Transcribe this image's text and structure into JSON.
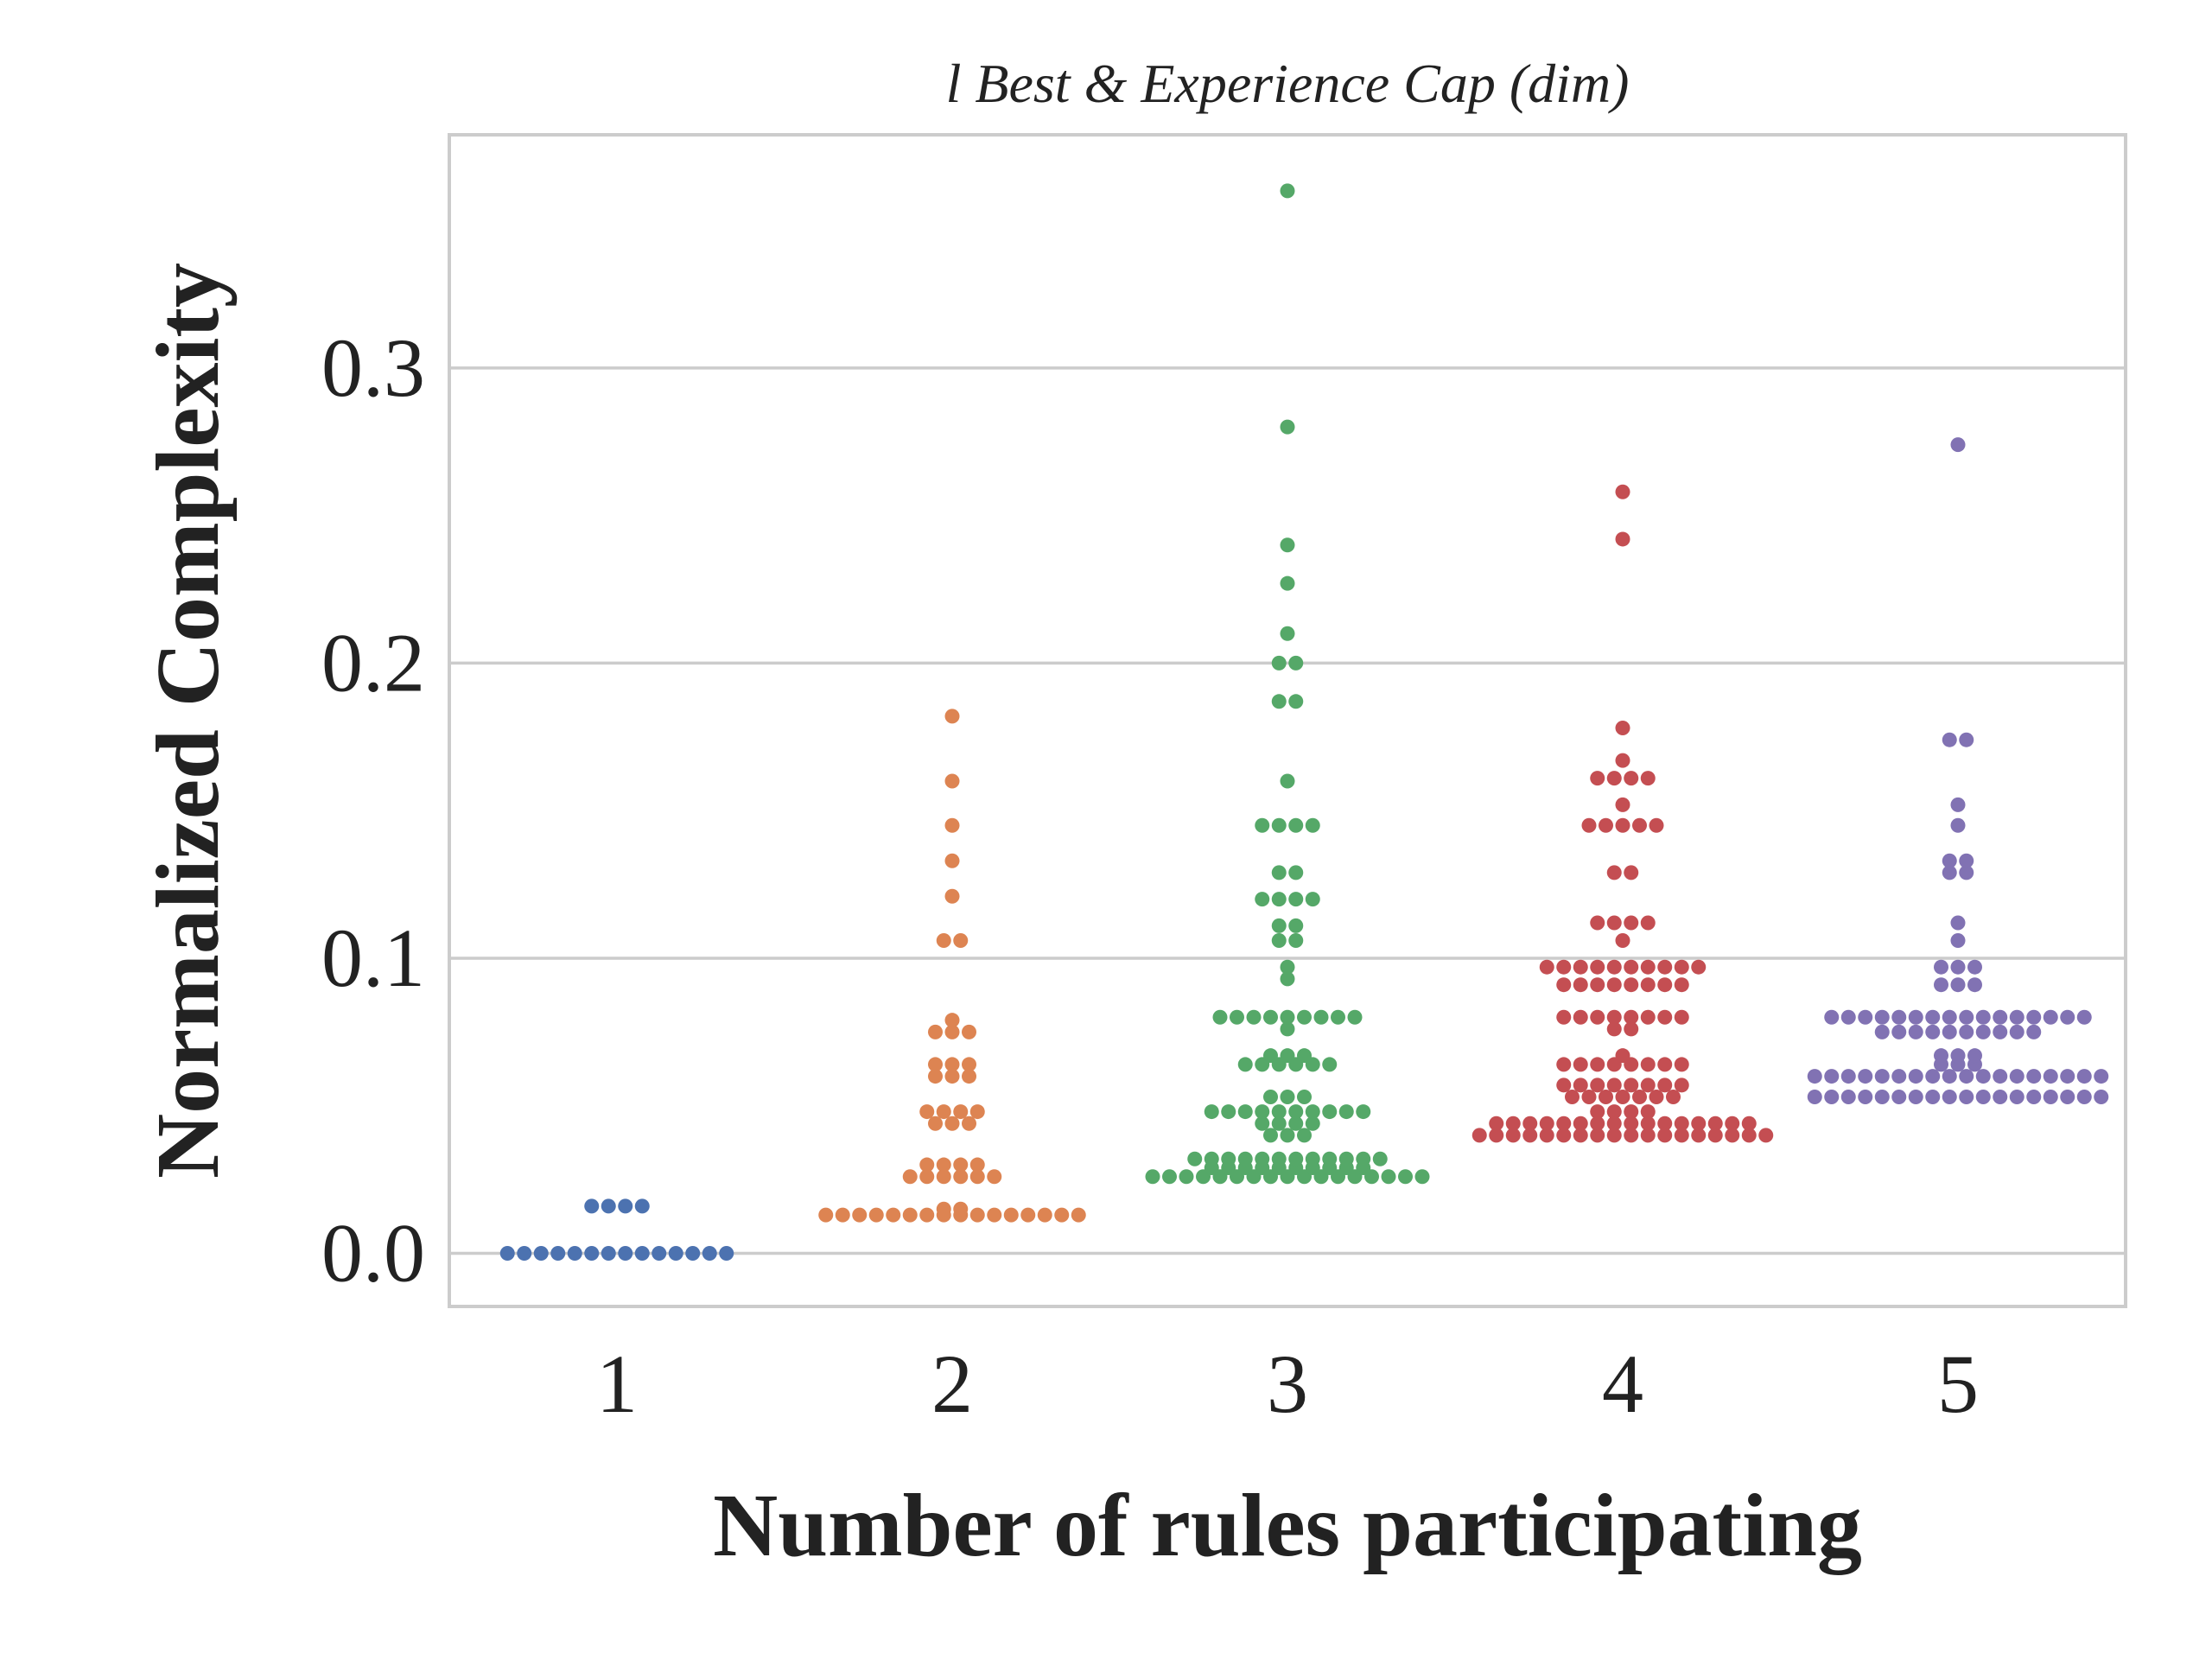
{
  "chart_data": {
    "type": "scatter",
    "subtype": "swarm",
    "title": "l Best & Experience Cap (dim)",
    "xlabel": "Number of rules participating",
    "ylabel": "Normalized Complexity",
    "ylim": [
      -0.018,
      0.379
    ],
    "yticks": [
      "0.0",
      "0.1",
      "0.2",
      "0.3"
    ],
    "categories": [
      "1",
      "2",
      "3",
      "4",
      "5"
    ],
    "grid": true,
    "series": [
      {
        "color": "#4c72b0",
        "groups": [
          [
            0.0,
            14
          ],
          [
            0.016,
            4
          ]
        ]
      },
      {
        "color": "#dd8452",
        "groups": [
          [
            0.013,
            16
          ],
          [
            0.015,
            2
          ],
          [
            0.026,
            6
          ],
          [
            0.03,
            4
          ],
          [
            0.044,
            3
          ],
          [
            0.048,
            4
          ],
          [
            0.06,
            3
          ],
          [
            0.064,
            3
          ],
          [
            0.075,
            3
          ],
          [
            0.079,
            1
          ],
          [
            0.106,
            2
          ],
          [
            0.121,
            1
          ],
          [
            0.133,
            1
          ],
          [
            0.145,
            1
          ],
          [
            0.16,
            1
          ],
          [
            0.182,
            1
          ]
        ]
      },
      {
        "color": "#55a868",
        "groups": [
          [
            0.026,
            17
          ],
          [
            0.029,
            10
          ],
          [
            0.032,
            12
          ],
          [
            0.04,
            3
          ],
          [
            0.044,
            4
          ],
          [
            0.048,
            10
          ],
          [
            0.053,
            3
          ],
          [
            0.064,
            6
          ],
          [
            0.067,
            3
          ],
          [
            0.076,
            1
          ],
          [
            0.08,
            9
          ],
          [
            0.093,
            1
          ],
          [
            0.097,
            1
          ],
          [
            0.106,
            2
          ],
          [
            0.111,
            2
          ],
          [
            0.12,
            4
          ],
          [
            0.129,
            2
          ],
          [
            0.145,
            4
          ],
          [
            0.16,
            1
          ],
          [
            0.187,
            2
          ],
          [
            0.2,
            2
          ],
          [
            0.21,
            1
          ],
          [
            0.227,
            1
          ],
          [
            0.24,
            1
          ],
          [
            0.28,
            1
          ],
          [
            0.36,
            1
          ]
        ]
      },
      {
        "color": "#c44e52",
        "groups": [
          [
            0.04,
            18
          ],
          [
            0.044,
            16
          ],
          [
            0.048,
            4
          ],
          [
            0.053,
            7
          ],
          [
            0.057,
            8
          ],
          [
            0.064,
            8
          ],
          [
            0.067,
            1
          ],
          [
            0.076,
            2
          ],
          [
            0.08,
            8
          ],
          [
            0.091,
            8
          ],
          [
            0.097,
            10
          ],
          [
            0.106,
            1
          ],
          [
            0.112,
            4
          ],
          [
            0.129,
            2
          ],
          [
            0.145,
            5
          ],
          [
            0.152,
            1
          ],
          [
            0.161,
            4
          ],
          [
            0.167,
            1
          ],
          [
            0.178,
            1
          ],
          [
            0.242,
            1
          ],
          [
            0.258,
            1
          ]
        ]
      },
      {
        "color": "#8172b3",
        "groups": [
          [
            0.053,
            18
          ],
          [
            0.06,
            18
          ],
          [
            0.064,
            3
          ],
          [
            0.067,
            3
          ],
          [
            0.075,
            10
          ],
          [
            0.08,
            16
          ],
          [
            0.091,
            3
          ],
          [
            0.097,
            3
          ],
          [
            0.106,
            1
          ],
          [
            0.112,
            1
          ],
          [
            0.129,
            2
          ],
          [
            0.133,
            2
          ],
          [
            0.145,
            1
          ],
          [
            0.152,
            1
          ],
          [
            0.174,
            2
          ],
          [
            0.274,
            1
          ]
        ]
      }
    ]
  }
}
